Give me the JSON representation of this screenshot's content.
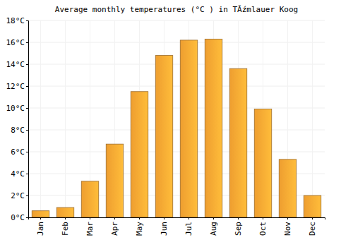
{
  "chart_data": {
    "type": "bar",
    "title": "Average monthly temperatures (°C ) in TĂźmlauer Koog",
    "categories": [
      "Jan",
      "Feb",
      "Mar",
      "Apr",
      "May",
      "Jun",
      "Jul",
      "Aug",
      "Sep",
      "Oct",
      "Nov",
      "Dec"
    ],
    "values": [
      0.6,
      0.9,
      3.3,
      6.7,
      11.5,
      14.8,
      16.2,
      16.3,
      13.6,
      9.9,
      5.3,
      2.0
    ],
    "color": "#fba733",
    "ylim": [
      0,
      18
    ],
    "yticks": [
      {
        "value": 0,
        "label": "0°C"
      },
      {
        "value": 2,
        "label": "2°C"
      },
      {
        "value": 4,
        "label": "4°C"
      },
      {
        "value": 6,
        "label": "6°C"
      },
      {
        "value": 8,
        "label": "8°C"
      },
      {
        "value": 10,
        "label": "10°C"
      },
      {
        "value": 12,
        "label": "12°C"
      },
      {
        "value": 14,
        "label": "14°C"
      },
      {
        "value": 16,
        "label": "16°C"
      },
      {
        "value": 18,
        "label": "18°C"
      }
    ],
    "grid": true
  }
}
